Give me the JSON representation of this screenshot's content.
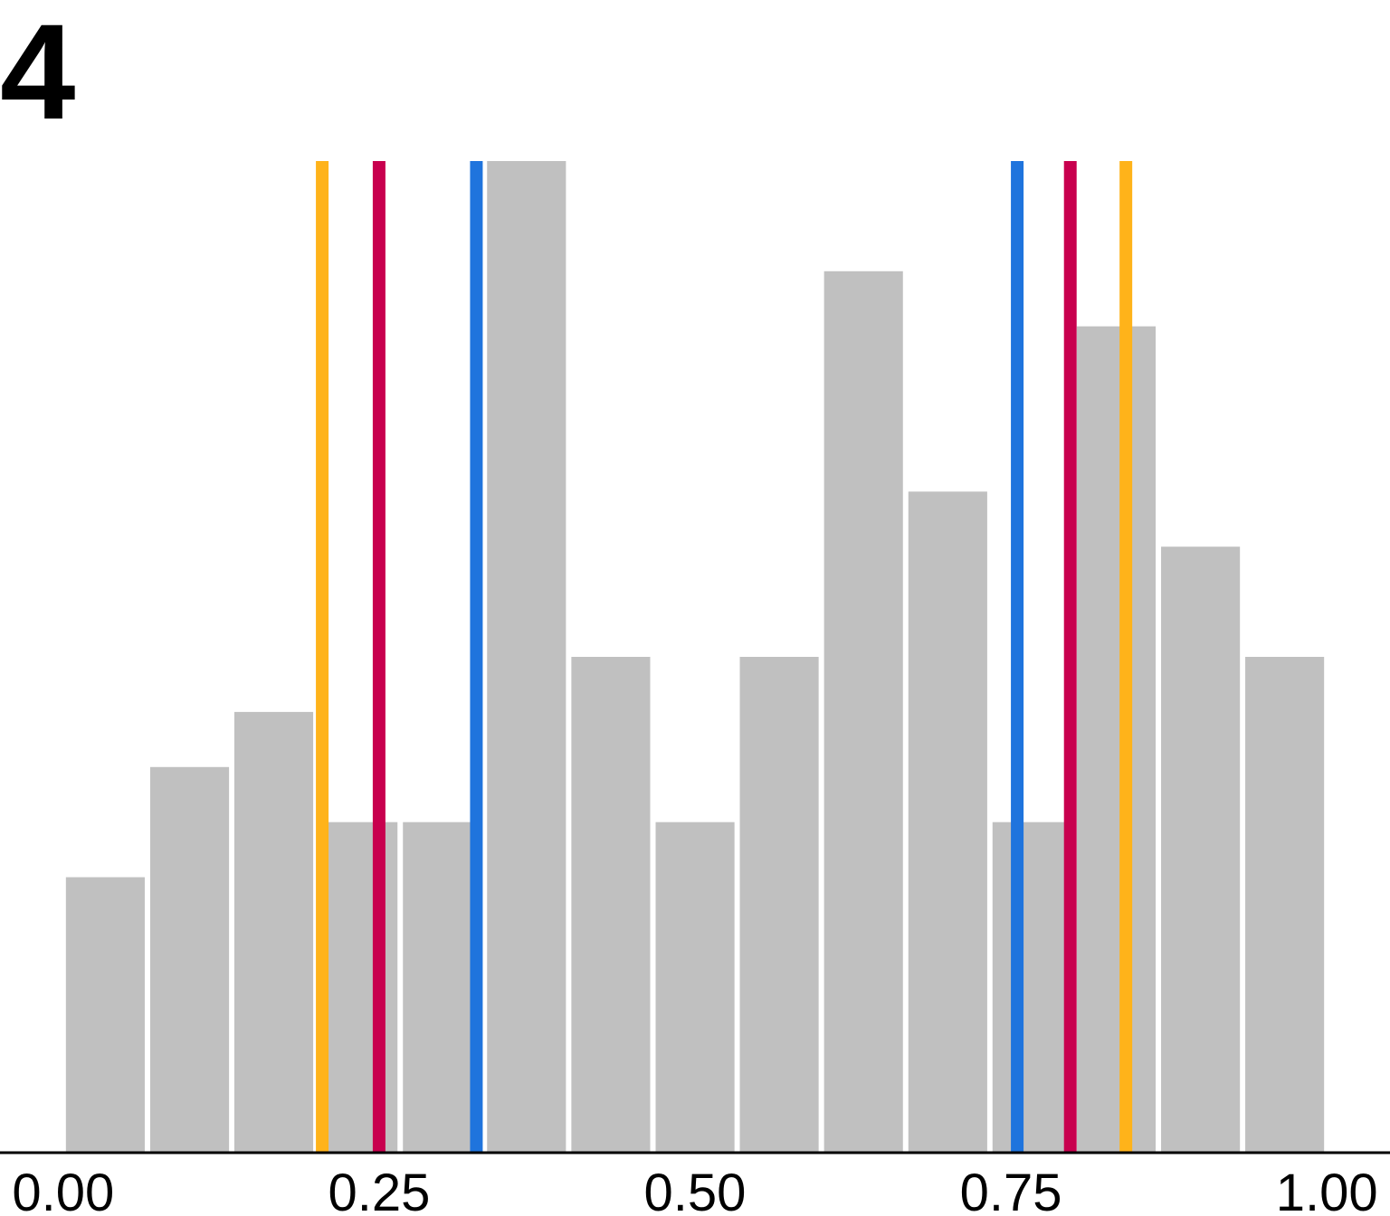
{
  "panel": {
    "label": "4"
  },
  "chart_data": {
    "type": "bar",
    "bins": [
      0.0,
      0.0667,
      0.1333,
      0.2,
      0.2667,
      0.3333,
      0.4,
      0.4667,
      0.5333,
      0.6,
      0.6667,
      0.7333,
      0.8,
      0.8667,
      0.9333
    ],
    "bin_width": 0.0667,
    "values": [
      5,
      7,
      8,
      6,
      6,
      18,
      9,
      6,
      9,
      16,
      12,
      6,
      15,
      11,
      9
    ],
    "xlim": [
      -0.05,
      1.05
    ],
    "ylim": [
      0,
      18
    ],
    "x_ticks": [
      "0.00",
      "0.25",
      "0.50",
      "0.75",
      "1.00"
    ],
    "x_tick_values": [
      0.0,
      0.25,
      0.5,
      0.75,
      1.0
    ],
    "bar_color": "#c0c0c0",
    "grid": false,
    "reference_lines": [
      {
        "x": 0.205,
        "color": "#ffb31a"
      },
      {
        "x": 0.25,
        "color": "#c8004e"
      },
      {
        "x": 0.327,
        "color": "#1f74dd"
      },
      {
        "x": 0.755,
        "color": "#1f74dd"
      },
      {
        "x": 0.797,
        "color": "#c8004e"
      },
      {
        "x": 0.841,
        "color": "#ffb31a"
      }
    ]
  }
}
